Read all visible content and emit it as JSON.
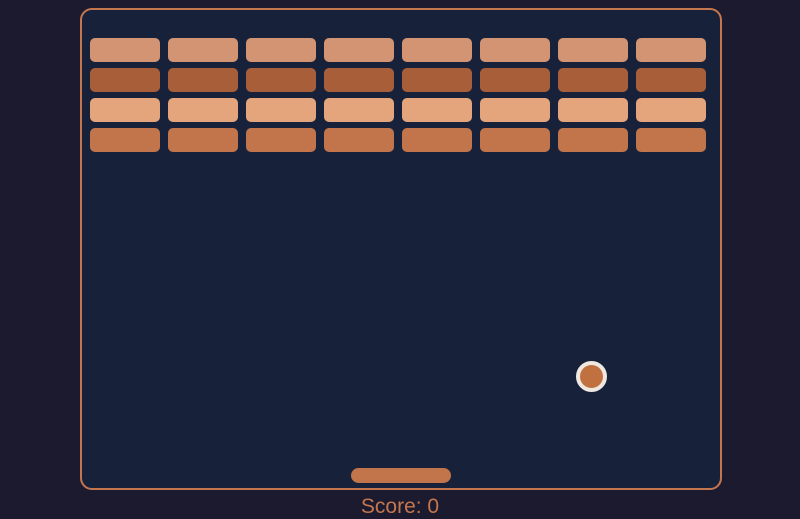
{
  "game": {
    "score_label": "Score: 0",
    "bricks": {
      "rows": 4,
      "cols": 8,
      "row_colors": [
        "#d29472",
        "#a85e38",
        "#e5a57c",
        "#c2754a"
      ]
    }
  },
  "colors": {
    "page_bg": "#1b1a2e",
    "canvas_bg": "#17213a",
    "accent": "#c4764e",
    "ball_fill": "#c1703f",
    "ball_ring": "#eee8e1",
    "paddle": "#c2754a"
  }
}
